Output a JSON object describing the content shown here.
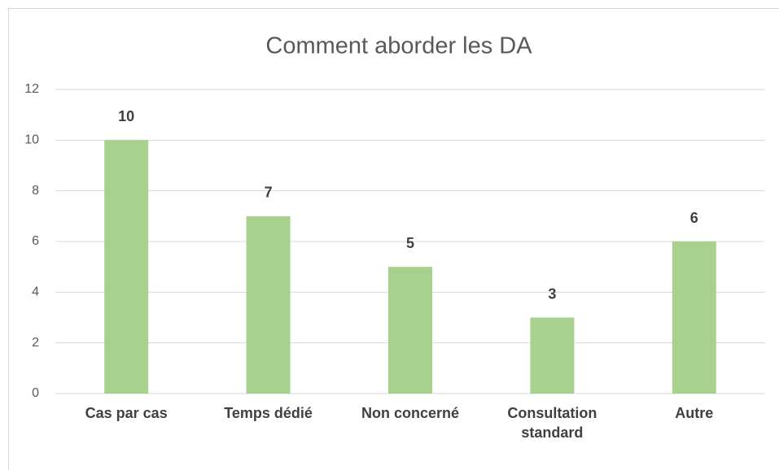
{
  "chart_data": {
    "type": "bar",
    "title": "Comment aborder les DA",
    "categories": [
      "Cas par cas",
      "Temps dédié",
      "Non concerné",
      "Consultation standard",
      "Autre"
    ],
    "values": [
      10,
      7,
      5,
      3,
      6
    ],
    "color": "#a9d18e",
    "ylim": [
      0,
      12
    ],
    "yticks": [
      0,
      2,
      4,
      6,
      8,
      10,
      12
    ],
    "grid": true
  }
}
